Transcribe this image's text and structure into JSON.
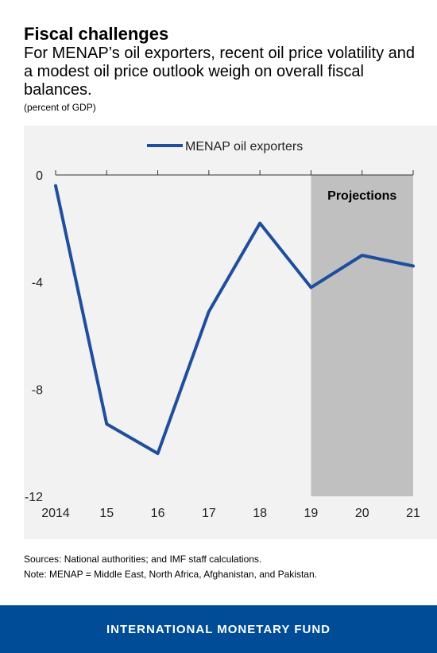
{
  "header": {
    "title": "Fiscal challenges",
    "subtitle": "For MENAP’s oil exporters, recent oil price volatility and a modest oil price outlook weigh on overall fiscal balances.",
    "unit": "(percent of GDP)"
  },
  "chart_data": {
    "type": "line",
    "categories": [
      "2014",
      "15",
      "16",
      "17",
      "18",
      "19",
      "20",
      "21"
    ],
    "series": [
      {
        "name": "MENAP oil exporters",
        "values": [
          -0.4,
          -9.3,
          -10.4,
          -5.1,
          -1.8,
          -4.2,
          -3.0,
          -3.4
        ],
        "color": "#1f4e9c"
      }
    ],
    "ylim": [
      -12,
      0
    ],
    "yticks": [
      0,
      -4,
      -8,
      -12
    ],
    "ytick_labels": [
      "0",
      "-4",
      "-8",
      "-12"
    ],
    "projection": {
      "start": "19",
      "end": "21",
      "label": "Projections",
      "color": "#c0c0c0"
    },
    "legend": "top-center",
    "grid": false,
    "xlabel": "",
    "ylabel": ""
  },
  "notes": {
    "sources": "Sources: National authorities; and IMF staff calculations.",
    "note": "Note: MENAP = Middle East, North Africa, Afghanistan, and Pakistan."
  },
  "footer": {
    "org": "INTERNATIONAL MONETARY FUND",
    "background": "#004c97"
  }
}
